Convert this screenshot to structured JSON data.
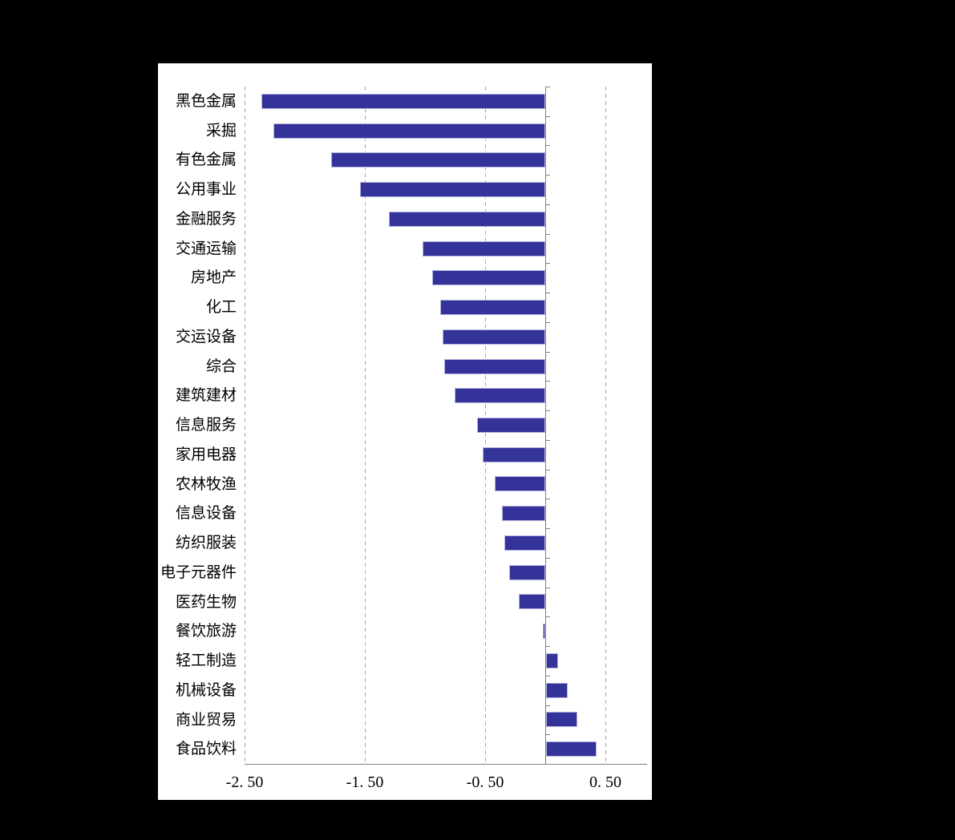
{
  "page": {
    "background": "#000000",
    "paper": "#ffffff"
  },
  "chart_data": {
    "type": "bar",
    "orientation": "horizontal",
    "categories": [
      "黑色金属",
      "采掘",
      "有色金属",
      "公用事业",
      "金融服务",
      "交通运输",
      "房地产",
      "化工",
      "交运设备",
      "综合",
      "建筑建材",
      "信息服务",
      "家用电器",
      "农林牧渔",
      "信息设备",
      "纺织服装",
      "电子元器件",
      "医药生物",
      "餐饮旅游",
      "轻工制造",
      "机械设备",
      "商业贸易",
      "食品饮料"
    ],
    "values": [
      -2.36,
      -2.26,
      -1.78,
      -1.54,
      -1.3,
      -1.02,
      -0.94,
      -0.87,
      -0.85,
      -0.84,
      -0.75,
      -0.57,
      -0.52,
      -0.42,
      -0.36,
      -0.34,
      -0.3,
      -0.22,
      -0.02,
      0.1,
      0.18,
      0.26,
      0.42
    ],
    "xticks": [
      -2.5,
      -1.5,
      -0.5,
      0.5
    ],
    "xtick_labels": [
      "-2. 50",
      "-1. 50",
      "-0. 50",
      "0. 50"
    ],
    "xlim": [
      -2.5,
      0.85
    ],
    "grid": "vertical-dashed",
    "legend": "none",
    "colors": {
      "bar_fill": "#333399",
      "bar_border": "#b5b4e0",
      "gridline": "#a8a8a8",
      "axis": "#7f7f7f",
      "text": "#000000",
      "plot_bg": "#ffffff",
      "page_bg": "#000000"
    }
  }
}
